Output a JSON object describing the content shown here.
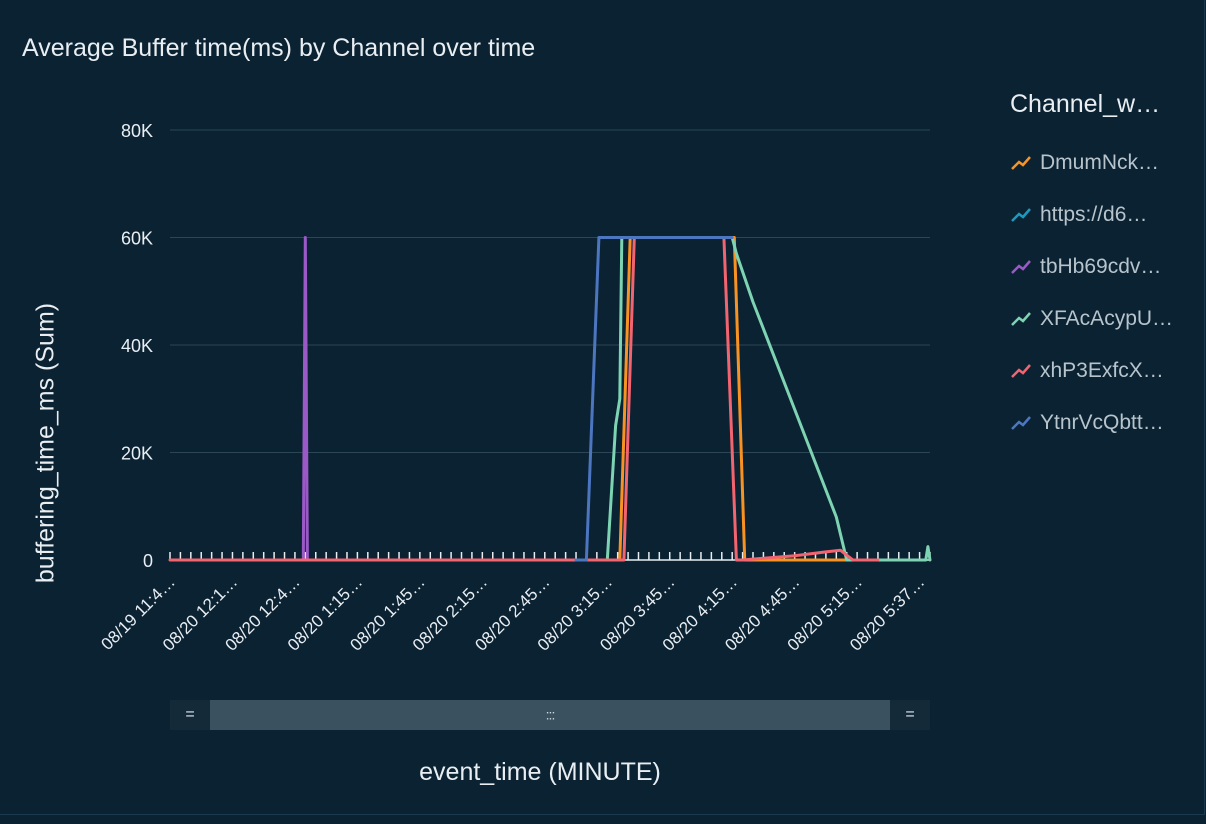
{
  "chart_data": {
    "type": "line",
    "title": "Average Buffer time(ms) by Channel over time",
    "xlabel": "event_time (MINUTE)",
    "ylabel": "buffering_time_ms (Sum)",
    "ylim": [
      0,
      80000
    ],
    "yticks": [
      0,
      20000,
      40000,
      60000,
      80000
    ],
    "ytick_labels": [
      "0",
      "20K",
      "40K",
      "60K",
      "80K"
    ],
    "xlim": [
      0,
      365
    ],
    "xtick_labels": [
      "08/19 11:4…",
      "08/20 12:1…",
      "08/20 12:4…",
      "08/20 1:15…",
      "08/20 1:45…",
      "08/20 2:15…",
      "08/20 2:45…",
      "08/20 3:15…",
      "08/20 3:45…",
      "08/20 4:15…",
      "08/20 4:45…",
      "08/20 5:15…",
      "08/20 5:37…"
    ],
    "xtick_values": [
      0,
      30,
      60,
      90,
      120,
      150,
      180,
      210,
      240,
      270,
      300,
      330,
      360
    ],
    "grid": true,
    "legend_title": "Channel_w…",
    "legend_position": "right",
    "series": [
      {
        "name": "DmumNck…",
        "color": "#f89222",
        "x": [
          195,
          210,
          215,
          216,
          221,
          224,
          225,
          260,
          270,
          271,
          276,
          280,
          285,
          290,
          320,
          345,
          350,
          355
        ],
        "y": [
          0,
          0,
          0,
          0,
          60000,
          60000,
          60000,
          60000,
          60000,
          60000,
          0,
          0,
          0,
          0,
          0,
          0,
          0,
          0
        ]
      },
      {
        "name": "https://d6…",
        "color": "#1a9ac0",
        "x": [
          325,
          340,
          345,
          350,
          355
        ],
        "y": [
          0,
          0,
          0,
          0,
          0
        ]
      },
      {
        "name": "tbHb69cdv…",
        "color": "#9b59c8",
        "x": [
          25,
          40,
          60,
          64,
          65,
          66,
          67,
          68,
          80,
          92
        ],
        "y": [
          0,
          0,
          0,
          0,
          60000,
          0,
          0,
          0,
          0,
          0
        ]
      },
      {
        "name": "XFAcAcypU…",
        "color": "#7dd3b2",
        "x": [
          205,
          210,
          214,
          216,
          217,
          225,
          230,
          260,
          270,
          272,
          280,
          300,
          320,
          325,
          330,
          345,
          355,
          360,
          363,
          364,
          365
        ],
        "y": [
          0,
          0,
          25000,
          30000,
          60000,
          60000,
          60000,
          60000,
          60000,
          57000,
          48000,
          28000,
          8000,
          0,
          0,
          0,
          0,
          0,
          0,
          2500,
          0
        ]
      },
      {
        "name": "xhP3ExfcX…",
        "color": "#f2646f",
        "x": [
          0,
          20,
          40,
          60,
          90,
          120,
          150,
          180,
          200,
          210,
          218,
          223,
          230,
          260,
          266,
          272,
          275,
          300,
          315,
          322,
          328,
          340
        ],
        "y": [
          0,
          0,
          0,
          0,
          0,
          0,
          0,
          0,
          0,
          0,
          0,
          60000,
          60000,
          60000,
          60000,
          0,
          0,
          800,
          1500,
          1800,
          0,
          0
        ]
      },
      {
        "name": "YtnrVcQbtt…",
        "color": "#4d76c1",
        "x": [
          195,
          200,
          206,
          215,
          230,
          260,
          270
        ],
        "y": [
          0,
          0,
          60000,
          60000,
          60000,
          60000,
          60000
        ]
      }
    ]
  },
  "scrollbar": {
    "left_handle": "=",
    "right_handle": "=",
    "grip": ":::"
  },
  "icons": {
    "legend_swatch": "line-swatch-icon"
  }
}
